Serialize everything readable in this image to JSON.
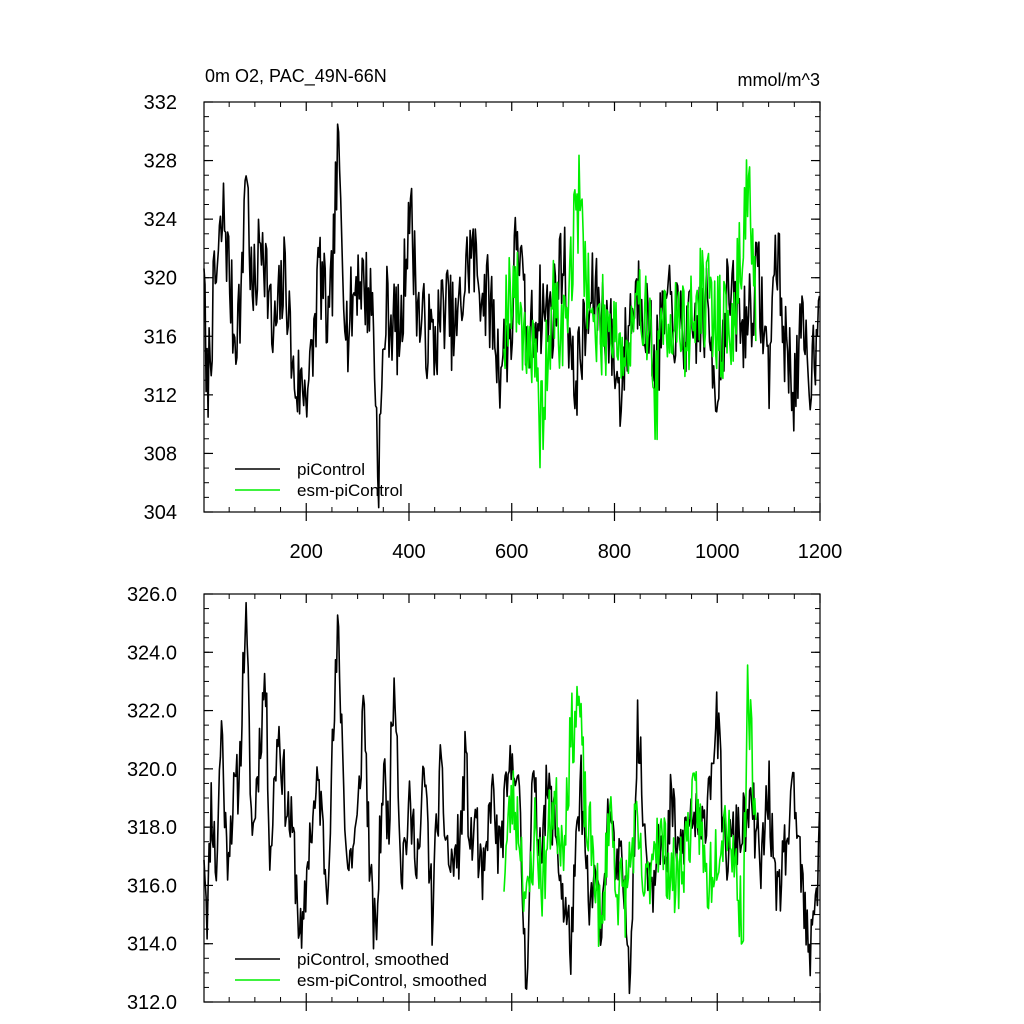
{
  "colors": {
    "piControl": "#000000",
    "esm_piControl": "#00ee00",
    "axis": "#000000",
    "background": "#ffffff"
  },
  "chart_data": [
    {
      "type": "line",
      "title": "0m O2, PAC_49N-66N",
      "units": "mmol/m^3",
      "xlabel": "",
      "ylabel": "",
      "xlim": [
        1,
        1200
      ],
      "ylim": [
        304,
        332
      ],
      "x_ticks": [
        200,
        400,
        600,
        800,
        1000,
        1200
      ],
      "x_tick_labels": [
        "200",
        "400",
        "600",
        "800",
        "1000",
        "1200"
      ],
      "y_ticks": [
        304,
        308,
        312,
        316,
        320,
        324,
        328,
        332
      ],
      "y_tick_labels": [
        "304",
        "308",
        "312",
        "316",
        "320",
        "324",
        "328",
        "332"
      ],
      "grid": false,
      "legend_position": "bottom-left",
      "series": [
        {
          "name": "piControl",
          "color": "#000000",
          "x_start": 1,
          "x_end": 1200,
          "anchors": [
            [
              1,
              322.3
            ],
            [
              5,
              311.5
            ],
            [
              20,
              318.5
            ],
            [
              40,
              324.5
            ],
            [
              60,
              316
            ],
            [
              75,
              319
            ],
            [
              82,
              329.0
            ],
            [
              95,
              318
            ],
            [
              115,
              323.5
            ],
            [
              135,
              315.5
            ],
            [
              160,
              320.5
            ],
            [
              175,
              313
            ],
            [
              190,
              312.5
            ],
            [
              210,
              313.5
            ],
            [
              225,
              321
            ],
            [
              245,
              316
            ],
            [
              262,
              328.5
            ],
            [
              280,
              316
            ],
            [
              300,
              320.5
            ],
            [
              330,
              318
            ],
            [
              340,
              306.5
            ],
            [
              355,
              318
            ],
            [
              385,
              316
            ],
            [
              400,
              325.5
            ],
            [
              420,
              317
            ],
            [
              450,
              315.5
            ],
            [
              470,
              318.5
            ],
            [
              490,
              316
            ],
            [
              520,
              322
            ],
            [
              540,
              319.5
            ],
            [
              560,
              318
            ],
            [
              575,
              314
            ],
            [
              600,
              316.5
            ],
            [
              610,
              324
            ],
            [
              630,
              315
            ],
            [
              650,
              318
            ],
            [
              680,
              317.5
            ],
            [
              700,
              322
            ],
            [
              720,
              312.5
            ],
            [
              760,
              319
            ],
            [
              790,
              316.5
            ],
            [
              810,
              312
            ],
            [
              830,
              317.5
            ],
            [
              850,
              319.5
            ],
            [
              880,
              314
            ],
            [
              900,
              318
            ],
            [
              940,
              316
            ],
            [
              980,
              317.5
            ],
            [
              1000,
              312.5
            ],
            [
              1020,
              319
            ],
            [
              1050,
              316.5
            ],
            [
              1080,
              320
            ],
            [
              1100,
              313.5
            ],
            [
              1115,
              322.5
            ],
            [
              1130,
              316
            ],
            [
              1150,
              312.5
            ],
            [
              1165,
              316
            ],
            [
              1180,
              313.5
            ],
            [
              1190,
              315
            ],
            [
              1200,
              322
            ]
          ],
          "noise_amplitude": 3.2,
          "seed": 7
        },
        {
          "name": "esm-piControl",
          "color": "#00ee00",
          "x_start": 585,
          "x_end": 1075,
          "anchors": [
            [
              585,
              317
            ],
            [
              600,
              320
            ],
            [
              620,
              317
            ],
            [
              640,
              315
            ],
            [
              655,
              309.5
            ],
            [
              680,
              318
            ],
            [
              700,
              316
            ],
            [
              730,
              325.5
            ],
            [
              760,
              316
            ],
            [
              800,
              317.5
            ],
            [
              820,
              314
            ],
            [
              860,
              319
            ],
            [
              880,
              311.5
            ],
            [
              900,
              318
            ],
            [
              940,
              316
            ],
            [
              970,
              319
            ],
            [
              1000,
              317
            ],
            [
              1030,
              316
            ],
            [
              1060,
              327
            ],
            [
              1075,
              318
            ]
          ],
          "noise_amplitude": 3.6,
          "seed": 19
        }
      ]
    },
    {
      "type": "line",
      "title": "",
      "xlabel": "",
      "ylabel": "",
      "xlim": [
        1,
        1200
      ],
      "ylim": [
        312.0,
        326.0
      ],
      "y_ticks": [
        312.0,
        314.0,
        316.0,
        318.0,
        320.0,
        322.0,
        324.0,
        326.0
      ],
      "y_tick_labels": [
        "312.0",
        "314.0",
        "316.0",
        "318.0",
        "320.0",
        "322.0",
        "324.0",
        "326.0"
      ],
      "grid": false,
      "legend_position": "bottom-left",
      "series": [
        {
          "name": "piControl, smoothed",
          "color": "#000000",
          "x_start": 1,
          "x_end": 1200,
          "anchors": [
            [
              1,
              317.5
            ],
            [
              8,
              314.8
            ],
            [
              15,
              319
            ],
            [
              25,
              316.5
            ],
            [
              35,
              321.7
            ],
            [
              45,
              317
            ],
            [
              55,
              318.5
            ],
            [
              70,
              319.8
            ],
            [
              82,
              325.5
            ],
            [
              95,
              317.5
            ],
            [
              110,
              321
            ],
            [
              120,
              323.3
            ],
            [
              130,
              317
            ],
            [
              145,
              321.5
            ],
            [
              160,
              319
            ],
            [
              175,
              317.5
            ],
            [
              185,
              315
            ],
            [
              192,
              313.7
            ],
            [
              205,
              317.5
            ],
            [
              225,
              319.5
            ],
            [
              240,
              316
            ],
            [
              262,
              324.7
            ],
            [
              280,
              316.5
            ],
            [
              300,
              318
            ],
            [
              312,
              322.6
            ],
            [
              325,
              316
            ],
            [
              335,
              314
            ],
            [
              350,
              320
            ],
            [
              360,
              318
            ],
            [
              372,
              323.8
            ],
            [
              385,
              316.5
            ],
            [
              400,
              318.5
            ],
            [
              420,
              317
            ],
            [
              430,
              320
            ],
            [
              445,
              315
            ],
            [
              460,
              319.8
            ],
            [
              480,
              316.5
            ],
            [
              500,
              317.5
            ],
            [
              510,
              320.5
            ],
            [
              520,
              317
            ],
            [
              530,
              318.5
            ],
            [
              540,
              316
            ],
            [
              550,
              316.5
            ],
            [
              560,
              319.5
            ],
            [
              575,
              317
            ],
            [
              590,
              319
            ],
            [
              605,
              320.8
            ],
            [
              615,
              318.5
            ],
            [
              628,
              312.5
            ],
            [
              640,
              319.5
            ],
            [
              655,
              317.5
            ],
            [
              670,
              319.3
            ],
            [
              685,
              318
            ],
            [
              700,
              315.5
            ],
            [
              715,
              314
            ],
            [
              735,
              319.5
            ],
            [
              750,
              315
            ],
            [
              760,
              316
            ],
            [
              775,
              315
            ],
            [
              790,
              319
            ],
            [
              800,
              316.5
            ],
            [
              815,
              316.5
            ],
            [
              830,
              313.2
            ],
            [
              845,
              321.5
            ],
            [
              860,
              317.5
            ],
            [
              875,
              316
            ],
            [
              885,
              318.5
            ],
            [
              900,
              316
            ],
            [
              910,
              319
            ],
            [
              925,
              317
            ],
            [
              950,
              318.5
            ],
            [
              970,
              317.5
            ],
            [
              990,
              320.5
            ],
            [
              1000,
              321.7
            ],
            [
              1015,
              317
            ],
            [
              1030,
              317.5
            ],
            [
              1050,
              318
            ],
            [
              1070,
              318.5
            ],
            [
              1085,
              316.5
            ],
            [
              1100,
              319.5
            ],
            [
              1115,
              315
            ],
            [
              1125,
              316.5
            ],
            [
              1140,
              318
            ],
            [
              1150,
              319
            ],
            [
              1165,
              316
            ],
            [
              1180,
              313.1
            ],
            [
              1188,
              315.7
            ],
            [
              1195,
              316
            ],
            [
              1200,
              319.4
            ]
          ],
          "noise_amplitude": 1.2,
          "seed": 11
        },
        {
          "name": "esm-piControl, smoothed",
          "color": "#00ee00",
          "x_start": 585,
          "x_end": 1075,
          "anchors": [
            [
              585,
              316.5
            ],
            [
              600,
              319
            ],
            [
              615,
              318
            ],
            [
              630,
              315
            ],
            [
              645,
              318
            ],
            [
              660,
              316
            ],
            [
              680,
              319
            ],
            [
              700,
              317.5
            ],
            [
              715,
              321
            ],
            [
              730,
              322.5
            ],
            [
              745,
              318
            ],
            [
              760,
              317
            ],
            [
              775,
              314
            ],
            [
              790,
              319
            ],
            [
              805,
              316
            ],
            [
              820,
              315.5
            ],
            [
              840,
              318
            ],
            [
              860,
              315.5
            ],
            [
              880,
              318
            ],
            [
              900,
              317
            ],
            [
              920,
              316
            ],
            [
              940,
              317.5
            ],
            [
              960,
              319
            ],
            [
              980,
              316
            ],
            [
              1000,
              317.5
            ],
            [
              1020,
              318.5
            ],
            [
              1040,
              316
            ],
            [
              1050,
              314.5
            ],
            [
              1060,
              323.3
            ],
            [
              1075,
              317
            ]
          ],
          "noise_amplitude": 1.4,
          "seed": 23
        }
      ]
    }
  ]
}
